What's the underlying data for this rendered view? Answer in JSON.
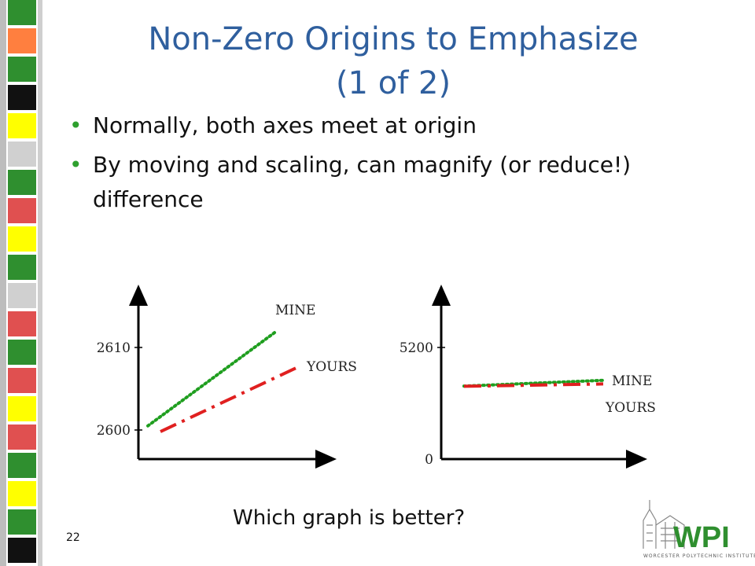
{
  "slide": {
    "title_line1": "Non-Zero Origins to Emphasize",
    "title_line2": "(1 of 2)",
    "bullets": [
      "Normally, both axes meet at origin",
      "By moving and scaling, can magnify (or reduce!) difference"
    ],
    "question": "Which graph is better?",
    "page_number": "22"
  },
  "logo": {
    "text": "WPI",
    "caption": "WORCESTER POLYTECHNIC INSTITUTE"
  },
  "colors": {
    "title": "#2f5f9e",
    "mine": "#1f9e1f",
    "yours": "#e02020"
  },
  "stripe_colors": [
    "#2f8f2f",
    "#ff7f3f",
    "#2f8f2f",
    "#111111",
    "#ffff00",
    "#d0d0d0",
    "#2f8f2f",
    "#e05050",
    "#ffff00",
    "#2f8f2f",
    "#d0d0d0",
    "#e05050",
    "#2f8f2f",
    "#e05050",
    "#ffff00",
    "#e05050",
    "#2f8f2f",
    "#ffff00",
    "#2f8f2f",
    "#111111"
  ],
  "chart_data": [
    {
      "type": "line",
      "yticks": [
        "2600",
        "2610"
      ],
      "ylim": [
        2599,
        2614
      ],
      "series": [
        {
          "name": "MINE",
          "style": "dotted",
          "color": "#1f9e1f",
          "x": [
            0,
            1
          ],
          "y": [
            2600.5,
            2612
          ]
        },
        {
          "name": "YOURS",
          "style": "dashdot",
          "color": "#e02020",
          "x": [
            0,
            1
          ],
          "y": [
            2599.8,
            2607.5
          ]
        }
      ]
    },
    {
      "type": "line",
      "yticks": [
        "0",
        "5200"
      ],
      "ylim": [
        0,
        7000
      ],
      "series": [
        {
          "name": "MINE",
          "style": "dotted",
          "color": "#1f9e1f",
          "x": [
            0,
            1
          ],
          "y": [
            3400,
            3670
          ]
        },
        {
          "name": "YOURS",
          "style": "dashdot",
          "color": "#e02020",
          "x": [
            0,
            1
          ],
          "y": [
            3390,
            3500
          ]
        }
      ]
    }
  ]
}
